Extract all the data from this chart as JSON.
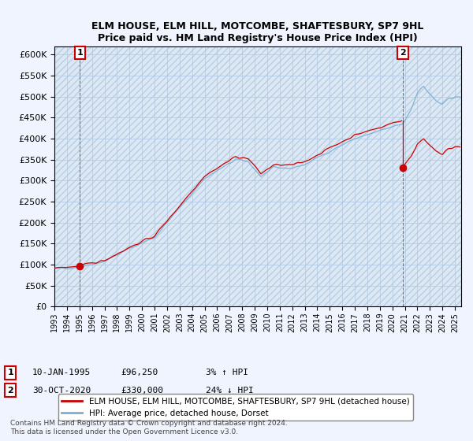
{
  "title": "ELM HOUSE, ELM HILL, MOTCOMBE, SHAFTESBURY, SP7 9HL",
  "subtitle": "Price paid vs. HM Land Registry's House Price Index (HPI)",
  "legend_line1": "ELM HOUSE, ELM HILL, MOTCOMBE, SHAFTESBURY, SP7 9HL (detached house)",
  "legend_line2": "HPI: Average price, detached house, Dorset",
  "annotation1_date": "10-JAN-1995",
  "annotation1_price": "£96,250",
  "annotation1_hpi": "3% ↑ HPI",
  "annotation2_date": "30-OCT-2020",
  "annotation2_price": "£330,000",
  "annotation2_hpi": "24% ↓ HPI",
  "copyright_text": "Contains HM Land Registry data © Crown copyright and database right 2024.\nThis data is licensed under the Open Government Licence v3.0.",
  "bg_color": "#dce8f5",
  "plot_bg": "#dce8f5",
  "red_color": "#cc0000",
  "blue_color": "#7aadd4",
  "ylim_min": 0,
  "ylim_max": 620000,
  "xlim_min": 1993,
  "xlim_max": 2025.5,
  "sale1_year": 1995.04,
  "sale1_price": 96250,
  "sale2_year": 2020.83,
  "sale2_price": 330000
}
